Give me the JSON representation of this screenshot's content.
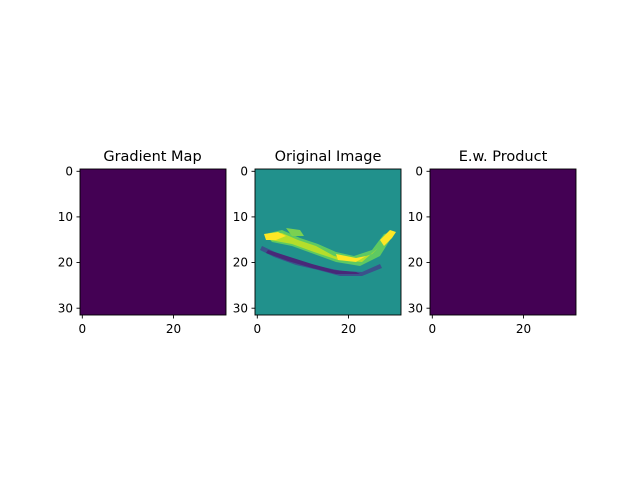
{
  "chart_data": [
    {
      "type": "heatmap",
      "title": "Gradient Map",
      "colormap": "viridis",
      "grid_size": [
        32,
        32
      ],
      "uniform_value_color": "#440154",
      "xticks": [
        0,
        20
      ],
      "yticks": [
        0,
        10,
        20,
        30
      ],
      "xlim": [
        -0.5,
        31.5
      ],
      "ylim": [
        31.5,
        -0.5
      ],
      "grid": false
    },
    {
      "type": "heatmap",
      "title": "Original Image",
      "colormap": "viridis",
      "grid_size": [
        32,
        32
      ],
      "background_color": "#21918c",
      "xticks": [
        0,
        20
      ],
      "yticks": [
        0,
        10,
        20,
        30
      ],
      "xlim": [
        -0.5,
        31.5
      ],
      "ylim": [
        31.5,
        -0.5
      ],
      "grid": false
    },
    {
      "type": "heatmap",
      "title": "E.w. Product",
      "colormap": "viridis",
      "grid_size": [
        32,
        32
      ],
      "uniform_value_color": "#440154",
      "xticks": [
        0,
        20
      ],
      "yticks": [
        0,
        10,
        20,
        30
      ],
      "xlim": [
        -0.5,
        31.5
      ],
      "ylim": [
        31.5,
        -0.5
      ],
      "grid": false
    }
  ]
}
